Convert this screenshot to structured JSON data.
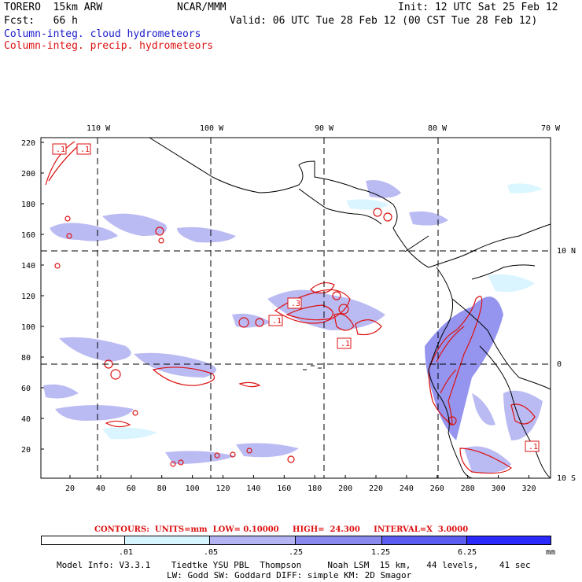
{
  "header": {
    "model": "TORERO  15km ARW",
    "org": "NCAR/MMM",
    "init": "Init: 12 UTC Sat 25 Feb 12",
    "fcst": "Fcst:   66 h",
    "valid": "Valid: 06 UTC Tue 28 Feb 12 (00 CST Tue 28 Feb 12)",
    "field_cloud": "Column-integ. cloud hydrometeors",
    "field_precip": "Column-integ. precip. hydrometeors"
  },
  "map": {
    "lon_labels": [
      "110 W",
      "100 W",
      "90 W",
      "80 W",
      "70 W"
    ],
    "lat_labels": [
      "10 N",
      "0",
      "10 S"
    ],
    "y_ticks": [
      "220",
      "200",
      "180",
      "160",
      "140",
      "120",
      "100",
      "80",
      "60",
      "40",
      "20"
    ],
    "x_ticks": [
      "20",
      "40",
      "60",
      "80",
      "100",
      "120",
      "140",
      "160",
      "180",
      "200",
      "220",
      "240",
      "260",
      "280",
      "300",
      "320"
    ],
    "contour_labels": [
      ".1",
      ".1",
      ".3",
      ".1",
      ".1",
      ".1"
    ]
  },
  "contours_info": {
    "text": "CONTOURS:  UNITS=mm  LOW= 0.10000     HIGH=  24.300     INTERVAL=X  3.0000"
  },
  "colorbar": {
    "labels": [
      ".01",
      ".05",
      ".25",
      "1.25",
      "6.25"
    ],
    "unit": "mm",
    "colors": [
      "#ffffff",
      "#d6f5ff",
      "#b4b4f2",
      "#8a8aee",
      "#5c5cf0",
      "#2a2aff"
    ]
  },
  "footer": {
    "line1": "Model Info: V3.3.1    Tiedtke YSU PBL  Thompson     Noah LSM  15 km,   44 levels,    41 sec",
    "line2": "LW: Godd SW: Goddard DIFF: simple KM: 2D Smagor"
  }
}
